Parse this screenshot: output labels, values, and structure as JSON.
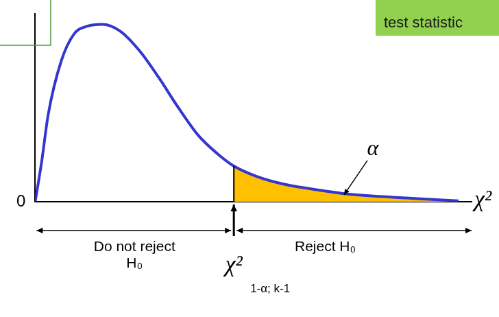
{
  "chart_data": {
    "type": "line",
    "x": [
      0,
      0.2,
      0.4,
      0.8,
      1.2,
      1.6,
      2.06,
      2.6,
      3.2,
      3.8,
      4.4,
      5,
      5.6,
      6.1,
      6.8,
      7.6,
      8.4,
      9.4,
      10.4,
      11.4,
      12.4,
      13
    ],
    "values": [
      0,
      0.043,
      0.093,
      0.15,
      0.179,
      0.187,
      0.189,
      0.182,
      0.161,
      0.132,
      0.1,
      0.071,
      0.051,
      0.038,
      0.027,
      0.019,
      0.014,
      0.009,
      0.006,
      0.004,
      0.002,
      0.001
    ],
    "color": "#3535d0",
    "xlim": [
      0,
      13.4
    ],
    "ylim": [
      0,
      0.2
    ],
    "yticks": [
      0
    ],
    "grid": false,
    "tick_labels": "y",
    "x_label": "χ²",
    "critical_value": 6.1,
    "critical_label": "χ²",
    "critical_subscript": "1-α; k-1",
    "tail_label": "α",
    "region_labels": [
      "Do not reject H₀",
      "Reject H₀"
    ],
    "box_text": "test statistic"
  }
}
